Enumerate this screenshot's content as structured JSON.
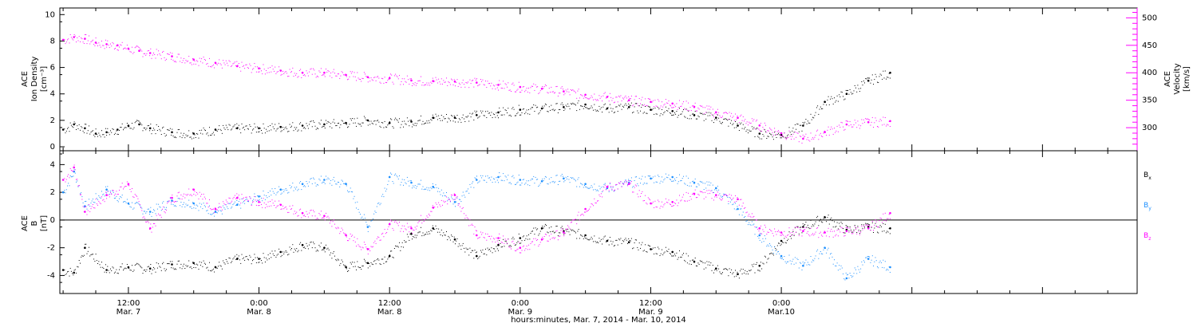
{
  "chart_data": [
    {
      "type": "scatter",
      "panel": "top",
      "ylabel_lines": [
        "ACE",
        "Ion Density",
        "[cm⁻³]"
      ],
      "y2label_lines": [
        "ACE",
        "Velocity",
        "[km/s]"
      ],
      "ylim": [
        -0.3,
        10.5
      ],
      "y_ticks": [
        "0",
        "2",
        "4",
        "6",
        "8",
        "10"
      ],
      "y2lim": [
        258,
        518
      ],
      "y2_ticks": [
        "300",
        "350",
        "400",
        "450",
        "500"
      ],
      "colors": {
        "density": "#000000",
        "velocity": "#ff00ff"
      },
      "series": [
        {
          "key": "density",
          "x_unit": "hours since 2014-03-07 00:00",
          "x": [
            6.0,
            7.0,
            8.0,
            9.0,
            10.0,
            11.0,
            12.0,
            13.0,
            14.0,
            16.0,
            18.0,
            20.0,
            22.0,
            24.0,
            26.0,
            28.0,
            30.0,
            32.0,
            34.0,
            36.0,
            38.0,
            40.0,
            42.0,
            44.0,
            46.0,
            48.0,
            50.0,
            52.0,
            54.0,
            56.0,
            58.0,
            60.0,
            62.0,
            64.0,
            66.0,
            68.0,
            70.0,
            72.0,
            74.0,
            76.0,
            78.0,
            80.0,
            82.0
          ],
          "y": [
            1.3,
            1.7,
            1.4,
            1.0,
            1.1,
            1.3,
            1.6,
            1.7,
            1.4,
            1.1,
            1.0,
            1.3,
            1.4,
            1.4,
            1.5,
            1.6,
            1.7,
            1.8,
            2.0,
            1.8,
            1.9,
            2.2,
            2.2,
            2.4,
            2.6,
            2.8,
            2.9,
            3.0,
            3.2,
            2.9,
            3.0,
            2.8,
            2.7,
            2.4,
            2.2,
            1.6,
            1.0,
            0.9,
            1.6,
            3.4,
            4.0,
            5.0,
            5.6
          ]
        },
        {
          "key": "velocity",
          "x_unit": "hours since 2014-03-07 00:00",
          "x": [
            6.0,
            7.0,
            8.0,
            9.0,
            10.0,
            11.0,
            12.0,
            13.0,
            14.0,
            16.0,
            18.0,
            20.0,
            22.0,
            24.0,
            26.0,
            28.0,
            30.0,
            32.0,
            34.0,
            36.0,
            38.0,
            40.0,
            42.0,
            44.0,
            46.0,
            48.0,
            50.0,
            52.0,
            54.0,
            56.0,
            58.0,
            60.0,
            62.0,
            64.0,
            66.0,
            68.0,
            70.0,
            72.0,
            74.0,
            76.0,
            78.0,
            80.0,
            82.0
          ],
          "y": [
            460,
            465,
            462,
            455,
            452,
            450,
            444,
            440,
            436,
            430,
            424,
            418,
            412,
            408,
            404,
            400,
            400,
            396,
            392,
            390,
            386,
            385,
            384,
            382,
            378,
            374,
            371,
            366,
            360,
            356,
            350,
            347,
            344,
            338,
            328,
            318,
            304,
            290,
            280,
            292,
            306,
            310,
            312
          ]
        }
      ]
    },
    {
      "type": "scatter",
      "panel": "bottom",
      "ylabel_lines": [
        "ACE",
        "B",
        "[nT]"
      ],
      "ylim": [
        -5.3,
        5.0
      ],
      "y_ticks": [
        "-4",
        "-2",
        "0",
        "2",
        "4"
      ],
      "zero_line": 0,
      "legend": {
        "position": "right",
        "entries": [
          "B",
          "B",
          "B"
        ],
        "subscripts": [
          "x",
          "y",
          "z"
        ]
      },
      "colors": {
        "bx": "#000000",
        "by": "#1e90ff",
        "bz": "#ff00ff"
      },
      "series": [
        {
          "key": "bx",
          "x_unit": "hours since 2014-03-07 00:00",
          "x": [
            6.0,
            7.0,
            8.0,
            10.0,
            12.0,
            14.0,
            16.0,
            18.0,
            20.0,
            22.0,
            24.0,
            26.0,
            28.0,
            30.0,
            32.0,
            34.0,
            36.0,
            38.0,
            40.0,
            42.0,
            44.0,
            46.0,
            48.0,
            50.0,
            52.0,
            54.0,
            56.0,
            58.0,
            60.0,
            62.0,
            64.0,
            66.0,
            68.0,
            70.0,
            72.0,
            74.0,
            76.0,
            78.0,
            80.0,
            82.0
          ],
          "y": [
            -3.6,
            -3.8,
            -2.0,
            -3.6,
            -3.4,
            -3.5,
            -3.2,
            -3.1,
            -3.4,
            -2.8,
            -2.8,
            -2.3,
            -1.8,
            -2.0,
            -3.4,
            -3.1,
            -2.6,
            -1.0,
            -0.6,
            -1.4,
            -2.6,
            -1.8,
            -1.3,
            -0.6,
            -0.8,
            -1.1,
            -1.5,
            -1.6,
            -2.1,
            -2.3,
            -3.0,
            -3.5,
            -3.9,
            -3.3,
            -1.5,
            -0.5,
            0.2,
            -0.7,
            -0.5,
            -0.6
          ]
        },
        {
          "key": "by",
          "x_unit": "hours since 2014-03-07 00:00",
          "x": [
            6.0,
            7.0,
            8.0,
            10.0,
            12.0,
            14.0,
            16.0,
            18.0,
            20.0,
            22.0,
            24.0,
            26.0,
            28.0,
            30.0,
            32.0,
            34.0,
            36.0,
            38.0,
            40.0,
            42.0,
            44.0,
            46.0,
            48.0,
            50.0,
            52.0,
            54.0,
            56.0,
            58.0,
            60.0,
            62.0,
            64.0,
            66.0,
            68.0,
            70.0,
            72.0,
            74.0,
            76.0,
            78.0,
            80.0,
            82.0
          ],
          "y": [
            2.0,
            3.5,
            1.0,
            2.2,
            1.2,
            0.6,
            1.4,
            1.2,
            0.6,
            1.1,
            1.7,
            2.2,
            2.6,
            2.9,
            2.6,
            -0.5,
            3.1,
            2.7,
            2.4,
            1.3,
            2.9,
            3.1,
            2.9,
            2.8,
            3.0,
            2.6,
            2.3,
            2.7,
            3.0,
            3.1,
            2.7,
            2.3,
            0.8,
            -1.1,
            -2.6,
            -3.3,
            -2.0,
            -4.2,
            -2.8,
            -3.4
          ]
        },
        {
          "key": "bz",
          "x_unit": "hours since 2014-03-07 00:00",
          "x": [
            6.0,
            7.0,
            8.0,
            10.0,
            12.0,
            14.0,
            16.0,
            18.0,
            20.0,
            22.0,
            24.0,
            26.0,
            28.0,
            30.0,
            32.0,
            34.0,
            36.0,
            38.0,
            40.0,
            42.0,
            44.0,
            46.0,
            48.0,
            50.0,
            52.0,
            54.0,
            56.0,
            58.0,
            60.0,
            62.0,
            64.0,
            66.0,
            68.0,
            70.0,
            72.0,
            74.0,
            76.0,
            78.0,
            80.0,
            82.0
          ],
          "y": [
            2.9,
            3.8,
            0.6,
            1.8,
            2.6,
            -0.6,
            1.6,
            2.2,
            0.8,
            1.6,
            1.3,
            1.1,
            0.5,
            0.3,
            -1.1,
            -2.1,
            -0.3,
            -0.6,
            0.9,
            1.8,
            -1.1,
            -1.3,
            -2.0,
            -1.4,
            -0.9,
            0.8,
            2.4,
            2.6,
            1.2,
            1.3,
            1.9,
            1.8,
            1.5,
            -0.6,
            -0.9,
            -0.8,
            -0.9,
            -0.8,
            -0.6,
            0.5
          ]
        }
      ]
    }
  ],
  "x_axis": {
    "xlim_hours": [
      5.7,
      104.7
    ],
    "major_ticks_hours": [
      12,
      24,
      36,
      48,
      60,
      72
    ],
    "tick_time_labels": [
      "12:00",
      "0:00",
      "12:00",
      "0:00",
      "12:00",
      "0:00"
    ],
    "tick_date_labels": [
      "Mar. 7",
      "Mar. 8",
      "Mar. 8",
      "Mar. 9",
      "Mar. 9",
      "Mar.10"
    ],
    "xlabel": "hours:minutes, Mar.  7, 2014 - Mar. 10, 2014"
  }
}
